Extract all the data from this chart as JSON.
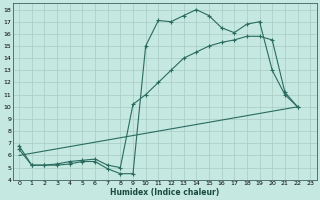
{
  "xlabel": "Humidex (Indice chaleur)",
  "bg_color": "#c5e8e0",
  "line_color": "#2a6b60",
  "grid_color": "#a8ccc4",
  "ylim": [
    4,
    18.5
  ],
  "xlim": [
    -0.5,
    23.5
  ],
  "yticks": [
    4,
    5,
    6,
    7,
    8,
    9,
    10,
    11,
    12,
    13,
    14,
    15,
    16,
    17,
    18
  ],
  "xticks": [
    0,
    1,
    2,
    3,
    4,
    5,
    6,
    7,
    8,
    9,
    10,
    11,
    12,
    13,
    14,
    15,
    16,
    17,
    18,
    19,
    20,
    21,
    22,
    23
  ],
  "line1_x": [
    0,
    1,
    2,
    3,
    4,
    5,
    6,
    7,
    8,
    9,
    10,
    11,
    12,
    13,
    14,
    15,
    16,
    17,
    18,
    19,
    20,
    21,
    22
  ],
  "line1_y": [
    6.8,
    5.2,
    5.2,
    5.2,
    5.3,
    5.5,
    5.5,
    4.9,
    4.5,
    4.5,
    15.0,
    17.1,
    17.0,
    17.5,
    18.0,
    17.5,
    16.5,
    16.1,
    16.8,
    17.0,
    13.0,
    11.0,
    10.0
  ],
  "line2_x": [
    0,
    22
  ],
  "line2_y": [
    6.0,
    10.0
  ],
  "line3_x": [
    0,
    1,
    2,
    3,
    4,
    5,
    6,
    7,
    8,
    9,
    10,
    11,
    12,
    13,
    14,
    15,
    16,
    17,
    18,
    19,
    20,
    21,
    22
  ],
  "line3_y": [
    6.5,
    5.2,
    5.2,
    5.3,
    5.5,
    5.6,
    5.7,
    5.2,
    5.0,
    10.2,
    11.0,
    12.0,
    13.0,
    14.0,
    14.5,
    15.0,
    15.3,
    15.5,
    15.8,
    15.8,
    15.5,
    11.2,
    10.0
  ]
}
